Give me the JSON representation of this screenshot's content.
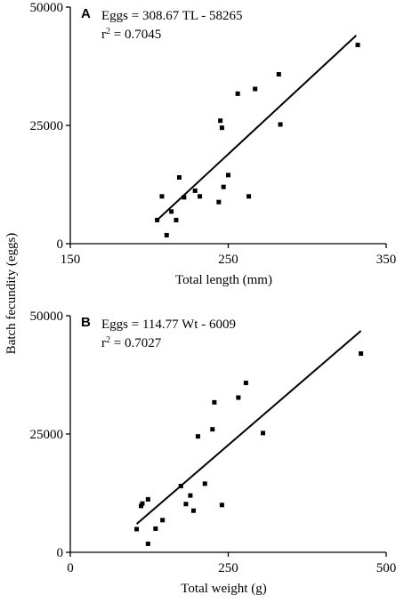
{
  "figure": {
    "ylabel": "Batch fecundity (eggs)"
  },
  "chart_data": [
    {
      "type": "scatter",
      "panel": "A",
      "xlabel": "Total length (mm)",
      "ylabel": "Batch fecundity (eggs)",
      "xlim": [
        150,
        350
      ],
      "ylim": [
        0,
        50000
      ],
      "xticks": [
        "150",
        "250",
        "350"
      ],
      "yticks": [
        "0",
        "25000",
        "50000"
      ],
      "annotation": {
        "equation": "Eggs = 308.67 TL - 58265",
        "r2_prefix": "r",
        "r2_sup": "2",
        "r2_rest": " = 0.7045"
      },
      "points": [
        {
          "x": 205,
          "y": 5000
        },
        {
          "x": 208,
          "y": 10000
        },
        {
          "x": 211,
          "y": 1800
        },
        {
          "x": 214,
          "y": 6800
        },
        {
          "x": 217,
          "y": 5000
        },
        {
          "x": 219,
          "y": 14000
        },
        {
          "x": 222,
          "y": 9800
        },
        {
          "x": 229,
          "y": 11200
        },
        {
          "x": 232,
          "y": 10000
        },
        {
          "x": 244,
          "y": 8800
        },
        {
          "x": 245,
          "y": 26000
        },
        {
          "x": 246,
          "y": 24500
        },
        {
          "x": 247,
          "y": 12000
        },
        {
          "x": 250,
          "y": 14500
        },
        {
          "x": 256,
          "y": 31700
        },
        {
          "x": 263,
          "y": 10000
        },
        {
          "x": 267,
          "y": 32700
        },
        {
          "x": 282,
          "y": 35800
        },
        {
          "x": 283,
          "y": 25200
        },
        {
          "x": 332,
          "y": 42000
        }
      ],
      "fit": {
        "x": [
          205,
          331
        ],
        "y": [
          5000,
          44000
        ]
      }
    },
    {
      "type": "scatter",
      "panel": "B",
      "xlabel": "Total weight (g)",
      "ylabel": "Batch fecundity (eggs)",
      "xlim": [
        0,
        500
      ],
      "ylim": [
        0,
        50000
      ],
      "xticks": [
        "0",
        "250",
        "500"
      ],
      "yticks": [
        "0",
        "25000",
        "50000"
      ],
      "annotation": {
        "equation": "Eggs = 114.77 Wt - 6009",
        "r2_prefix": "r",
        "r2_sup": "2",
        "r2_rest": " = 0.7027"
      },
      "points": [
        {
          "x": 105,
          "y": 4900
        },
        {
          "x": 112,
          "y": 9800
        },
        {
          "x": 114,
          "y": 10300
        },
        {
          "x": 123,
          "y": 11200
        },
        {
          "x": 123,
          "y": 1800
        },
        {
          "x": 135,
          "y": 5000
        },
        {
          "x": 146,
          "y": 6800
        },
        {
          "x": 175,
          "y": 14000
        },
        {
          "x": 183,
          "y": 10200
        },
        {
          "x": 190,
          "y": 12000
        },
        {
          "x": 195,
          "y": 8800
        },
        {
          "x": 202,
          "y": 24500
        },
        {
          "x": 213,
          "y": 14500
        },
        {
          "x": 225,
          "y": 26000
        },
        {
          "x": 228,
          "y": 31700
        },
        {
          "x": 240,
          "y": 10000
        },
        {
          "x": 266,
          "y": 32700
        },
        {
          "x": 278,
          "y": 35800
        },
        {
          "x": 305,
          "y": 25200
        },
        {
          "x": 460,
          "y": 42000
        }
      ],
      "fit": {
        "x": [
          105,
          460
        ],
        "y": [
          6000,
          46800
        ]
      }
    }
  ]
}
